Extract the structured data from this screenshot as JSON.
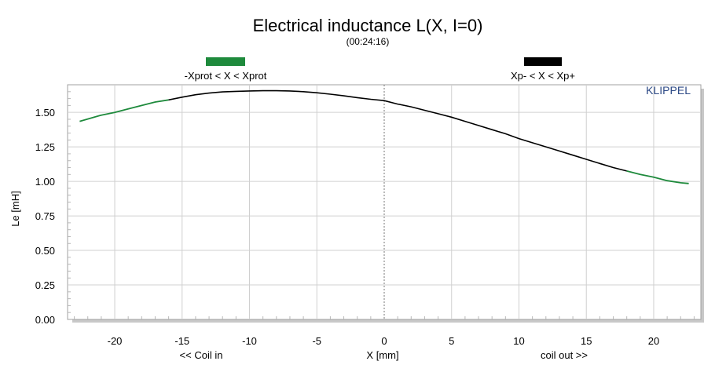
{
  "chart_data": {
    "type": "line",
    "title": "Electrical inductance L(X, I=0)",
    "subtitle": "(00:24:16)",
    "xlabel": "X [mm]",
    "ylabel": "Le [mH]",
    "x_left_note": "<< Coil in",
    "x_right_note": "coil out >>",
    "brand": "KLIPPEL",
    "xlim": [
      -23.5,
      23.5
    ],
    "ylim": [
      0,
      1.7
    ],
    "xticks": [
      -20,
      -15,
      -10,
      -5,
      0,
      5,
      10,
      15,
      20
    ],
    "yticks": [
      0.0,
      0.25,
      0.5,
      0.75,
      1.0,
      1.25,
      1.5
    ],
    "xtick_labels": [
      "-20",
      "-15",
      "-10",
      "-5",
      "0",
      "5",
      "10",
      "15",
      "20"
    ],
    "ytick_labels": [
      "0.00",
      "0.25",
      "0.50",
      "0.75",
      "1.00",
      "1.25",
      "1.50"
    ],
    "grid": true,
    "legend_position": "top",
    "legend": [
      {
        "label": "-Xprot < X < Xprot",
        "color": "#1e8a3c"
      },
      {
        "label": "Xp- < X < Xp+",
        "color": "#000000"
      }
    ],
    "colors": {
      "outer": "#1e8a3c",
      "inner": "#000000",
      "grid": "#d0d0d0",
      "zero_line": "#777777",
      "frame_shadow": "#c8c8c8"
    },
    "inner_range": [
      -16,
      18
    ],
    "series": [
      {
        "x": [
          -22.6,
          -21,
          -20,
          -19,
          -18,
          -17,
          -16,
          -15,
          -14,
          -13,
          -12,
          -11,
          -10,
          -9,
          -8,
          -7,
          -6,
          -5,
          -4,
          -3,
          -2,
          -1,
          0,
          1,
          2,
          3,
          4,
          5,
          6,
          7,
          8,
          9,
          10,
          11,
          12,
          13,
          14,
          15,
          16,
          17,
          18,
          19,
          20,
          21,
          22,
          22.6
        ],
        "y": [
          1.435,
          1.48,
          1.5,
          1.525,
          1.55,
          1.575,
          1.59,
          1.61,
          1.628,
          1.64,
          1.648,
          1.652,
          1.655,
          1.657,
          1.657,
          1.655,
          1.65,
          1.642,
          1.632,
          1.62,
          1.607,
          1.595,
          1.585,
          1.56,
          1.54,
          1.515,
          1.49,
          1.465,
          1.435,
          1.405,
          1.375,
          1.345,
          1.31,
          1.28,
          1.25,
          1.22,
          1.19,
          1.16,
          1.13,
          1.1,
          1.075,
          1.05,
          1.03,
          1.005,
          0.99,
          0.985
        ]
      }
    ]
  }
}
